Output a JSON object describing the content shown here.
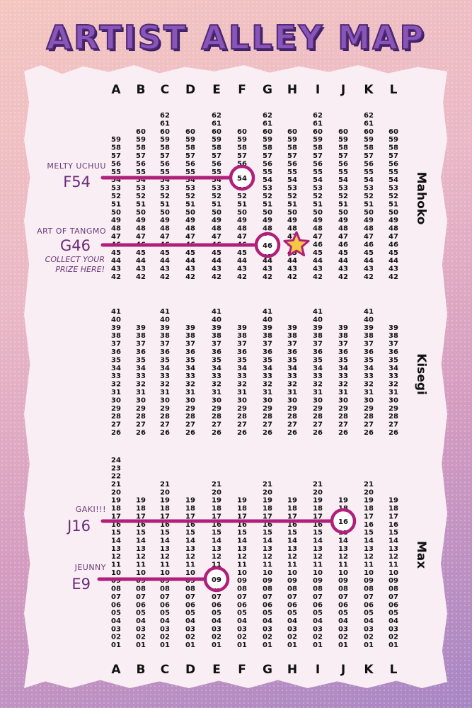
{
  "title": "ARTIST ALLEY MAP",
  "columns": [
    "A",
    "B",
    "C",
    "D",
    "E",
    "F",
    "G",
    "H",
    "I",
    "J",
    "K",
    "L"
  ],
  "sections": [
    {
      "name": "Mahoko",
      "top_col_value": 62,
      "bottom_col_value": 42
    },
    {
      "name": "Kisegi",
      "top_col_value": 41,
      "bottom_col_value": 26
    },
    {
      "name": "Max",
      "top_col_value": 24,
      "bottom_col_value": 1
    }
  ],
  "callouts": [
    {
      "name": "MELTY UCHUU",
      "code": "F54",
      "column": "F",
      "table": "54",
      "note": []
    },
    {
      "name": "ART OF TANGMO",
      "code": "G46",
      "column": "G",
      "table": "46",
      "note": [
        "COLLECT YOUR",
        "PRIZE HERE!"
      ]
    },
    {
      "name": "GAKI!!!",
      "code": "J16",
      "column": "J",
      "table": "16",
      "note": []
    },
    {
      "name": "JEUNNY",
      "code": "E9",
      "column": "E",
      "table": "09",
      "note": []
    }
  ],
  "prize_marker": {
    "icon": "star-icon",
    "column": "H",
    "table": "46",
    "color": "#f5c842"
  },
  "colors": {
    "highlight": "#b0207a",
    "title": "#8a55b8",
    "title_shadow": "#3f1f66",
    "callout_text": "#6a2a7a"
  }
}
